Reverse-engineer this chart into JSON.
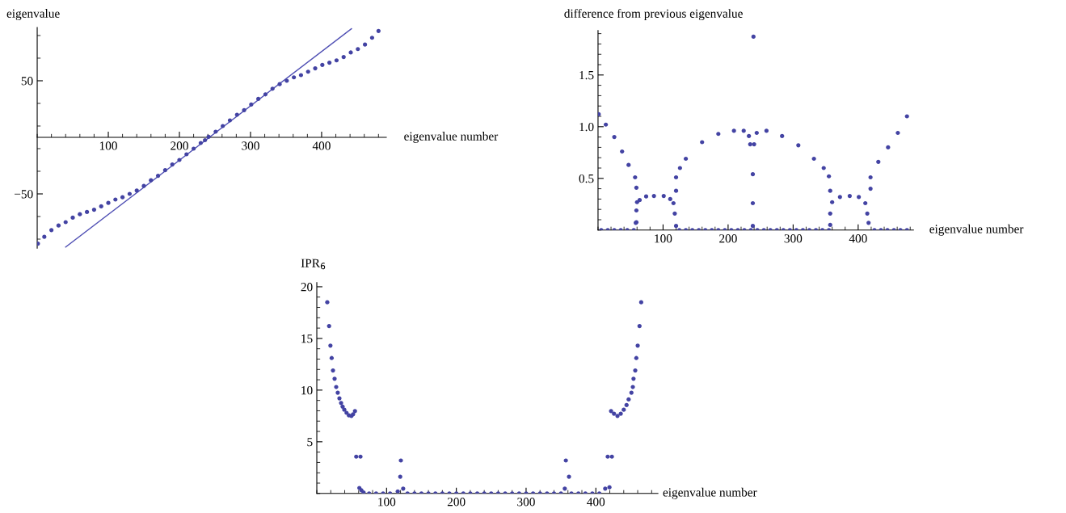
{
  "chart_data": [
    {
      "type": "scatter",
      "ylabel": "eigenvalue",
      "xlabel": "eigenvalue number",
      "xlim": [
        0,
        491
      ],
      "ylim": [
        -98,
        97
      ],
      "xticks": [
        100,
        200,
        300,
        400
      ],
      "yticks": [
        {
          "value": -50,
          "label": "−50"
        },
        50
      ],
      "marker": "circle",
      "series": [
        {
          "color": "#4343a3",
          "x": [
            1,
            10,
            20,
            30,
            40,
            50,
            60,
            70,
            80,
            90,
            100,
            110,
            120,
            130,
            140,
            150,
            160,
            170,
            180,
            190,
            200,
            210,
            220,
            230,
            236,
            241,
            251,
            261,
            271,
            281,
            291,
            301,
            311,
            321,
            331,
            341,
            351,
            361,
            371,
            381,
            391,
            401,
            411,
            421,
            431,
            441,
            451,
            461,
            471,
            480
          ],
          "values": [
            -94,
            -88,
            -82,
            -78,
            -75,
            -71,
            -68,
            -66,
            -64,
            -61,
            -58,
            -55,
            -53,
            -50,
            -47,
            -43,
            -38,
            -34,
            -29,
            -24,
            -20,
            -15,
            -10,
            -5,
            -2.5,
            0.5,
            5,
            10,
            15,
            20,
            24,
            29,
            34,
            38,
            43,
            47,
            50,
            53,
            55,
            58,
            61,
            64,
            66,
            68,
            71,
            75,
            78,
            82,
            88,
            94
          ]
        },
        {
          "type": "line",
          "marker": "none",
          "color": "#5252b5",
          "x": [
            40,
            442
          ],
          "values": [
            -97,
            96
          ]
        }
      ]
    },
    {
      "type": "scatter",
      "ylabel": "difference from previous eigenvalue",
      "xlabel": "eigenvalue number",
      "xlim": [
        0,
        485
      ],
      "ylim": [
        0,
        1.93
      ],
      "xticks": [
        100,
        200,
        300,
        400
      ],
      "yticks": [
        {
          "value": 0.5,
          "label": "0.5"
        },
        {
          "value": 1.0,
          "label": "1.0"
        },
        {
          "value": 1.5,
          "label": "1.5"
        }
      ],
      "marker": "circle",
      "series": [
        {
          "color": "#4343a3",
          "x": [
            1,
            12,
            25,
            37,
            47,
            57,
            59,
            60,
            59,
            59,
            58,
            64,
            74,
            86,
            101,
            111,
            116,
            118,
            120,
            120,
            120,
            126,
            135,
            160,
            185,
            209,
            224,
            232,
            234,
            238,
            238,
            238,
            239,
            240,
            244,
            259,
            283,
            308,
            332,
            347,
            355,
            357,
            357,
            357,
            360,
            372,
            387,
            401,
            411,
            414,
            416,
            419,
            419,
            431,
            446,
            461,
            475,
            5,
            15,
            25,
            35,
            45,
            55,
            125,
            135,
            145,
            155,
            165,
            175,
            185,
            195,
            205,
            215,
            225,
            235,
            245,
            255,
            265,
            275,
            285,
            295,
            305,
            315,
            325,
            335,
            345,
            355,
            425,
            435,
            445,
            455,
            465,
            475
          ],
          "values": [
            1.12,
            1.02,
            0.9,
            0.76,
            0.63,
            0.51,
            0.41,
            0.27,
            0.19,
            0.075,
            0.07,
            0.29,
            0.325,
            0.33,
            0.33,
            0.3,
            0.26,
            0.16,
            0.38,
            0.51,
            0.04,
            0.6,
            0.69,
            0.85,
            0.93,
            0.96,
            0.96,
            0.91,
            0.83,
            0.54,
            0.26,
            0.04,
            1.87,
            0.83,
            0.94,
            0.96,
            0.91,
            0.82,
            0.69,
            0.6,
            0.52,
            0.38,
            0.16,
            0.05,
            0.27,
            0.32,
            0.33,
            0.32,
            0.26,
            0.16,
            0.07,
            0.4,
            0.51,
            0.66,
            0.8,
            0.94,
            1.1,
            0,
            0,
            0,
            0,
            0,
            0,
            0,
            0,
            0,
            0,
            0,
            0,
            0,
            0,
            0,
            0,
            0,
            0,
            0,
            0,
            0,
            0,
            0,
            0,
            0,
            0,
            0,
            0,
            0,
            0,
            0,
            0,
            0,
            0,
            0,
            0
          ]
        }
      ]
    },
    {
      "type": "scatter",
      "ylabel": "IPR$_{6}$",
      "xlabel": "eigenvalue number",
      "xlim": [
        0,
        489
      ],
      "ylim": [
        0,
        20.4
      ],
      "xticks": [
        100,
        200,
        300,
        400
      ],
      "yticks": [
        5,
        10,
        15,
        20
      ],
      "marker": "circle",
      "series": [
        {
          "color": "#4343a3",
          "x": [
            15,
            17.6,
            19.5,
            21.3,
            23.2,
            25.5,
            27.8,
            30,
            32.4,
            34.8,
            37,
            39.4,
            42.6,
            46,
            49.6,
            52,
            54.7,
            56.5,
            62.6,
            61,
            64,
            67,
            120.5,
            119.6,
            123.8,
            116,
            357,
            361.5,
            355.5,
            413.4,
            419.5,
            417,
            423,
            421.8,
            426,
            431,
            435.7,
            440,
            444,
            447,
            451,
            453,
            454,
            456.5,
            458,
            460,
            462.6,
            465,
            75,
            85,
            95,
            105,
            130,
            140,
            150,
            160,
            170,
            180,
            190,
            200,
            210,
            220,
            230,
            240,
            250,
            260,
            270,
            280,
            290,
            300,
            310,
            320,
            330,
            340,
            350,
            365,
            375,
            385,
            395,
            405
          ],
          "values": [
            18.5,
            16.2,
            14.3,
            13.1,
            11.9,
            11.1,
            10.3,
            9.75,
            9.2,
            8.75,
            8.4,
            8.1,
            7.8,
            7.55,
            7.5,
            7.66,
            7.97,
            3.56,
            3.56,
            0.53,
            0.3,
            0.1,
            3.19,
            1.62,
            0.47,
            0.2,
            3.19,
            1.62,
            0.47,
            0.47,
            0.6,
            3.56,
            3.56,
            7.97,
            7.72,
            7.5,
            7.72,
            8.1,
            8.56,
            9.1,
            9.75,
            10.3,
            11.1,
            11.9,
            13.1,
            14.3,
            16.2,
            18.5,
            0,
            0,
            0,
            0,
            0,
            0,
            0,
            0,
            0,
            0,
            0,
            0,
            0,
            0,
            0,
            0,
            0,
            0,
            0,
            0,
            0,
            0,
            0,
            0,
            0,
            0,
            0,
            0,
            0,
            0,
            0,
            0
          ]
        }
      ]
    }
  ]
}
